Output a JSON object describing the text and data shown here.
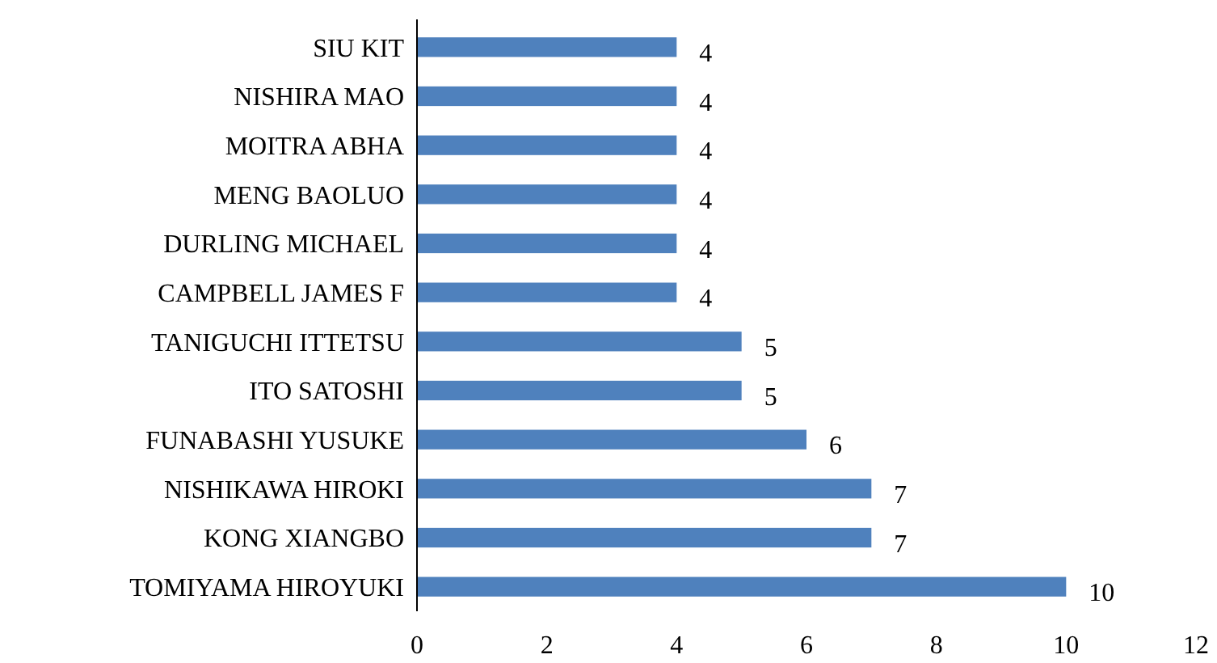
{
  "chart_data": {
    "type": "bar",
    "orientation": "horizontal",
    "categories": [
      "SIU KIT",
      "NISHIRA MAO",
      "MOITRA ABHA",
      "MENG BAOLUO",
      "DURLING MICHAEL",
      "CAMPBELL JAMES F",
      "TANIGUCHI ITTETSU",
      "ITO SATOSHI",
      "FUNABASHI YUSUKE",
      "NISHIKAWA HIROKI",
      "KONG XIANGBO",
      "TOMIYAMA HIROYUKI"
    ],
    "values": [
      4,
      4,
      4,
      4,
      4,
      4,
      5,
      5,
      6,
      7,
      7,
      10
    ],
    "color": "#4f81bd",
    "xlim": [
      0,
      12
    ],
    "xticks": [
      0,
      2,
      4,
      6,
      8,
      10,
      12
    ],
    "data_labels": true
  }
}
